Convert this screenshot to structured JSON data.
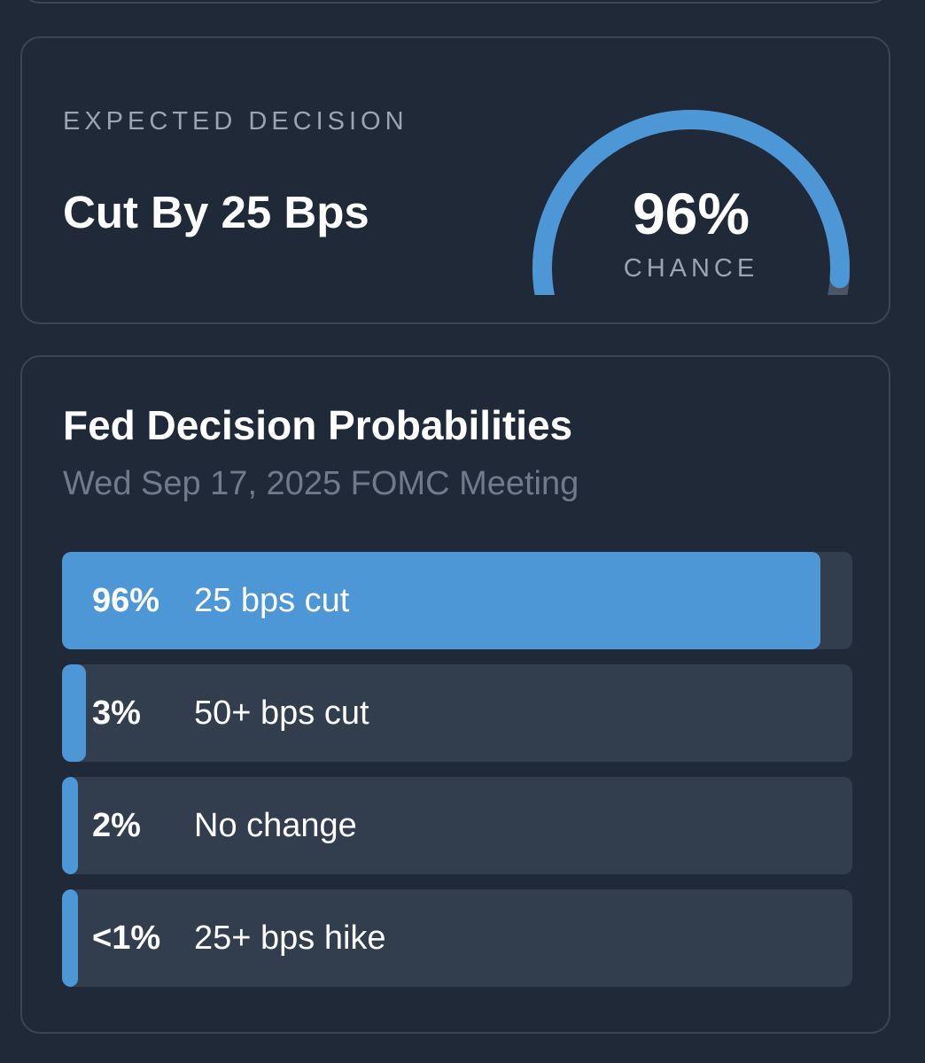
{
  "decision_card": {
    "eyebrow": "EXPECTED DECISION",
    "headline": "Cut By 25 Bps",
    "gauge": {
      "value_text": "96%",
      "label": "CHANCE",
      "fraction": 0.96,
      "fill_color": "#4d97d6",
      "track_color": "#4a5566"
    }
  },
  "probabilities_card": {
    "title": "Fed Decision Probabilities",
    "subtitle": "Wed Sep 17, 2025 FOMC Meeting",
    "fill_color": "#4d97d6",
    "track_color": "#323d4e",
    "rows": [
      {
        "pct_text": "96%",
        "label": "25 bps cut",
        "value": 96
      },
      {
        "pct_text": "3%",
        "label": "50+ bps cut",
        "value": 3
      },
      {
        "pct_text": "2%",
        "label": "No change",
        "value": 2
      },
      {
        "pct_text": "<1%",
        "label": "25+ bps hike",
        "value": 1
      }
    ]
  }
}
